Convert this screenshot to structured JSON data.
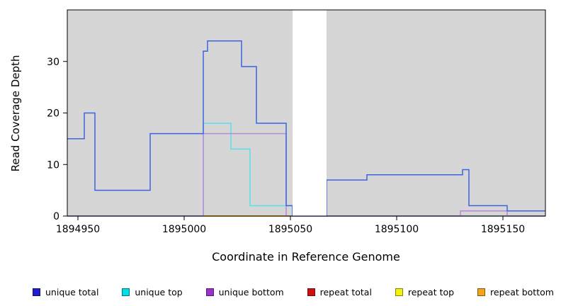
{
  "chart_data": {
    "type": "line",
    "style": "step",
    "title": "",
    "xlabel": "Coordinate in Reference Genome",
    "ylabel": "Read Coverage Depth",
    "x_range": [
      1894945,
      1895170
    ],
    "y_range": [
      0,
      40
    ],
    "x_ticks": [
      1894950,
      1895000,
      1895050,
      1895100,
      1895150
    ],
    "y_ticks": [
      0,
      10,
      20,
      30
    ],
    "grid": false,
    "legend_position": "bottom",
    "plot_bg": "#d6d6d6",
    "page_bg": "#ffffff",
    "gap_region": {
      "x_start": 1895051,
      "x_end": 1895067
    },
    "draw_order": [
      "repeat_total",
      "repeat_top",
      "repeat_bottom",
      "unique_top",
      "unique_bottom",
      "unique_total"
    ],
    "series": [
      {
        "id": "unique_total",
        "name": "unique total",
        "legend_color": "#1f1fcd",
        "line_color": "#3c64e2",
        "steps": [
          [
            1894945,
            1894953,
            15
          ],
          [
            1894953,
            1894958,
            20
          ],
          [
            1894958,
            1894984,
            5
          ],
          [
            1894984,
            1895009,
            16
          ],
          [
            1895009,
            1895011,
            32
          ],
          [
            1895011,
            1895027,
            34
          ],
          [
            1895027,
            1895034,
            29
          ],
          [
            1895034,
            1895048,
            18
          ],
          [
            1895048,
            1895051,
            2
          ],
          [
            1895051,
            1895067,
            0
          ],
          [
            1895067,
            1895086,
            7
          ],
          [
            1895086,
            1895131,
            8
          ],
          [
            1895131,
            1895134,
            9
          ],
          [
            1895134,
            1895152,
            2
          ],
          [
            1895152,
            1895170,
            1
          ]
        ]
      },
      {
        "id": "unique_top",
        "name": "unique top",
        "legend_color": "#00dde6",
        "line_color": "#5cdfe6",
        "steps": [
          [
            1894945,
            1895009,
            0
          ],
          [
            1895009,
            1895022,
            18
          ],
          [
            1895022,
            1895031,
            13
          ],
          [
            1895031,
            1895051,
            2
          ],
          [
            1895051,
            1895170,
            0
          ]
        ]
      },
      {
        "id": "unique_bottom",
        "name": "unique bottom",
        "legend_color": "#9932cc",
        "line_color": "#bb86de",
        "steps": [
          [
            1894945,
            1895009,
            0
          ],
          [
            1895009,
            1895048,
            16
          ],
          [
            1895048,
            1895130,
            0
          ],
          [
            1895130,
            1895152,
            1
          ],
          [
            1895152,
            1895170,
            0
          ]
        ]
      },
      {
        "id": "repeat_total",
        "name": "repeat total",
        "legend_color": "#cc1111",
        "line_color": "#cc4444",
        "steps": [
          [
            1894945,
            1895170,
            0
          ]
        ]
      },
      {
        "id": "repeat_top",
        "name": "repeat top",
        "legend_color": "#f2f20a",
        "line_color": "#f2f20a",
        "steps": [
          [
            1895009,
            1895051,
            0
          ]
        ]
      },
      {
        "id": "repeat_bottom",
        "name": "repeat bottom",
        "legend_color": "#f5a21d",
        "line_color": "#f5a21d",
        "steps": [
          [
            1895009,
            1895051,
            0
          ]
        ]
      }
    ]
  }
}
